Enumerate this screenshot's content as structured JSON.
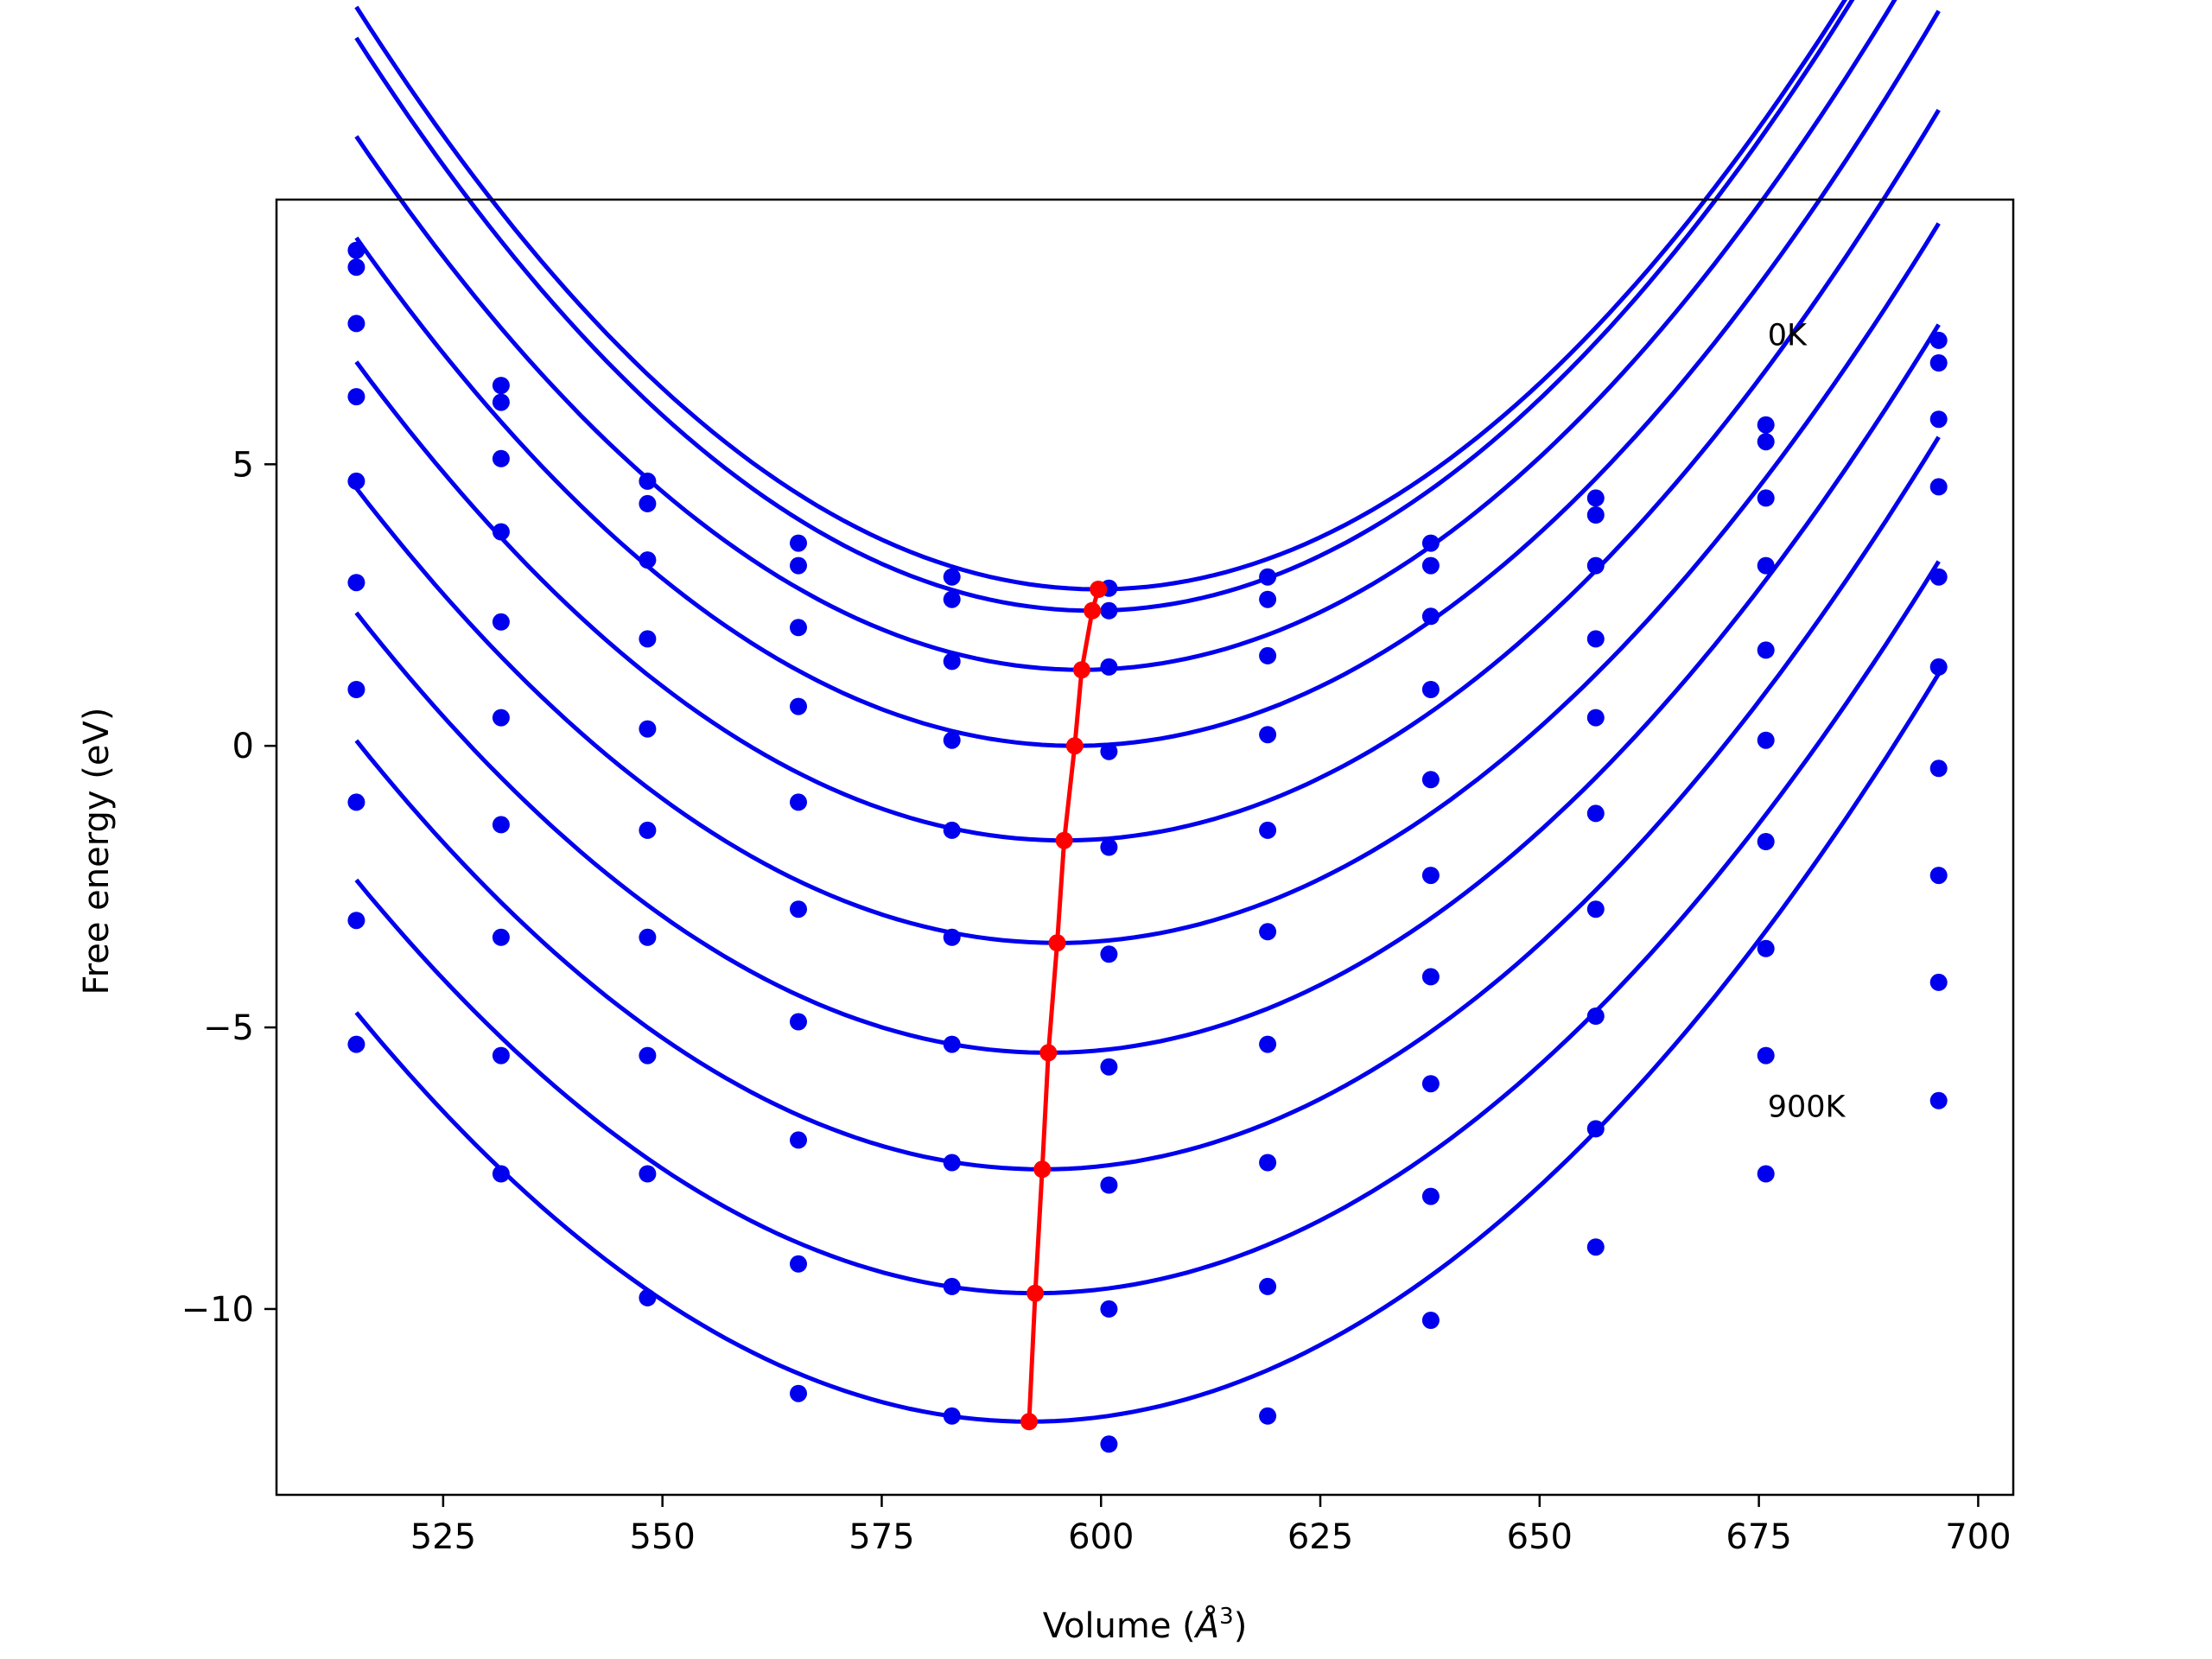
{
  "chart_data": {
    "type": "line",
    "xlabel": "Volume (",
    "xlabel_unit": "Å",
    "xlabel_unit_exp": "3",
    "xlabel_close": ")",
    "ylabel": "Free energy (eV)",
    "xlim": [
      506,
      704
    ],
    "ylim": [
      -13.3,
      9.7
    ],
    "xticks": [
      525,
      550,
      575,
      600,
      625,
      650,
      675,
      700
    ],
    "yticks": [
      5,
      0,
      -5,
      -10
    ],
    "xtick_labels": [
      "525",
      "550",
      "575",
      "600",
      "625",
      "650",
      "675",
      "700"
    ],
    "ytick_labels": [
      "5",
      "0",
      "−5",
      "−10"
    ],
    "grid": false,
    "colors": {
      "curves": "#0000ee",
      "points": "#0000ee",
      "minima": "#ff0000"
    },
    "annotations": [
      {
        "text": "0K",
        "x": 676,
        "y": 7.3
      },
      {
        "text": "900K",
        "x": 676,
        "y": -6.4
      }
    ],
    "volumes": [
      515.1,
      531.6,
      548.3,
      565.5,
      583.0,
      600.9,
      619.0,
      637.6,
      656.4,
      675.8,
      695.5
    ],
    "series": [
      {
        "points": [
          8.8,
          6.4,
          4.7,
          3.6,
          3.0,
          2.8,
          3.0,
          3.6,
          4.4,
          5.7,
          7.2
        ],
        "fit": {
          "a": 0.001445,
          "v0": 599.7,
          "e0": 2.78
        }
      },
      {
        "points": [
          8.5,
          6.1,
          4.3,
          3.2,
          2.6,
          2.4,
          2.6,
          3.2,
          4.1,
          5.4,
          6.8
        ],
        "fit": {
          "a": 0.001445,
          "v0": 599.0,
          "e0": 2.4
        }
      },
      {
        "points": [
          7.5,
          5.1,
          3.3,
          2.1,
          1.5,
          1.4,
          1.6,
          2.3,
          3.2,
          4.4,
          5.8
        ],
        "fit": {
          "a": 0.001385,
          "v0": 597.8,
          "e0": 1.35
        }
      },
      {
        "points": [
          6.2,
          3.8,
          1.9,
          0.7,
          0.1,
          -0.1,
          0.2,
          1.0,
          1.9,
          3.2,
          4.6
        ],
        "fit": {
          "a": 0.001345,
          "v0": 597.0,
          "e0": 0.0
        }
      },
      {
        "points": [
          4.7,
          2.2,
          0.3,
          -1.0,
          -1.5,
          -1.8,
          -1.5,
          -0.6,
          0.5,
          1.7,
          3.0
        ],
        "fit": {
          "a": 0.001305,
          "v0": 595.8,
          "e0": -1.68
        }
      },
      {
        "points": [
          2.9,
          0.5,
          -1.5,
          -2.9,
          -3.4,
          -3.7,
          -3.3,
          -2.3,
          -1.2,
          0.1,
          1.4
        ],
        "fit": {
          "a": 0.001265,
          "v0": 595.0,
          "e0": -3.5
        }
      },
      {
        "points": [
          1.0,
          -1.4,
          -3.4,
          -4.9,
          -5.3,
          -5.7,
          -5.3,
          -4.1,
          -2.9,
          -1.7,
          -0.4
        ],
        "fit": {
          "a": 0.001255,
          "v0": 594.0,
          "e0": -5.45
        }
      },
      {
        "points": [
          -1.0,
          -3.4,
          -5.5,
          -7.0,
          -7.4,
          -7.8,
          -7.4,
          -6.0,
          -4.8,
          -3.6,
          -2.3
        ],
        "fit": {
          "a": 0.001245,
          "v0": 593.3,
          "e0": -7.52
        }
      },
      {
        "points": [
          -3.1,
          -5.5,
          -7.6,
          -9.2,
          -9.6,
          -10.0,
          -9.6,
          -8.0,
          -6.8,
          -5.5,
          -4.2
        ],
        "fit": {
          "a": 0.001225,
          "v0": 592.5,
          "e0": -9.72
        }
      },
      {
        "points": [
          -5.3,
          -7.6,
          -9.8,
          -11.5,
          -11.9,
          -12.4,
          -11.9,
          -10.2,
          -8.9,
          -7.6,
          -6.3
        ],
        "fit": {
          "a": 0.001235,
          "v0": 591.8,
          "e0": -12.0
        }
      }
    ],
    "minima_line": {
      "x": [
        599.7,
        599.0,
        597.8,
        597.0,
        595.8,
        595.0,
        594.0,
        593.3,
        592.5,
        591.8
      ],
      "y": [
        2.78,
        2.4,
        1.35,
        0.0,
        -1.68,
        -3.5,
        -5.45,
        -7.52,
        -9.72,
        -12.0
      ]
    }
  }
}
